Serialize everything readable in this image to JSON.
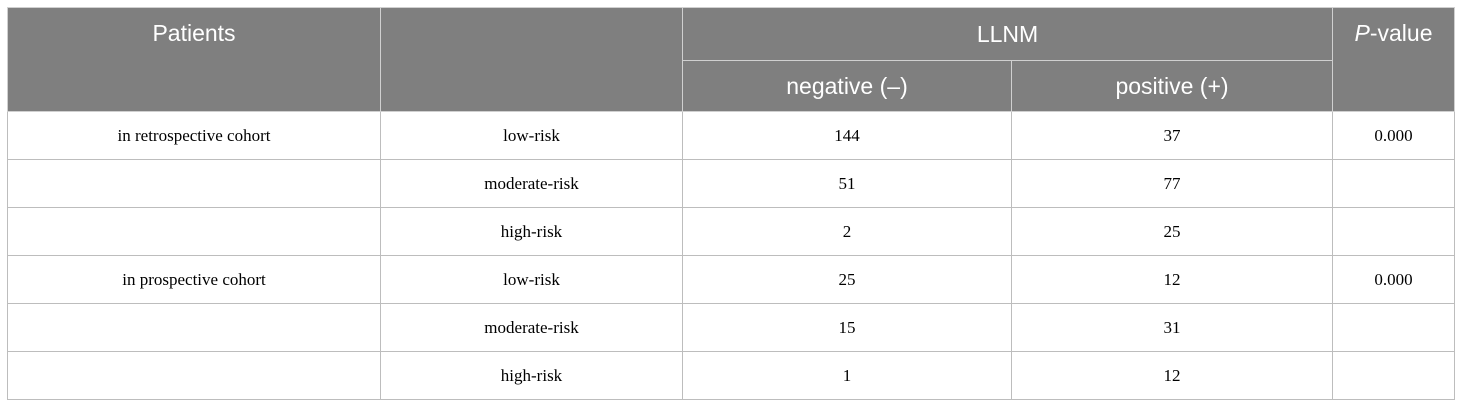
{
  "header": {
    "patients": "Patients",
    "group": "",
    "llnm": "LLNM",
    "p_value_italic": "P",
    "p_value_rest": "-value",
    "negative": "negative (–)",
    "positive": "positive (+)"
  },
  "rows": [
    {
      "cohort": "in retrospective cohort",
      "risk": "low-risk",
      "neg": "144",
      "pos": "37",
      "p": "0.000"
    },
    {
      "cohort": "",
      "risk": "moderate-risk",
      "neg": "51",
      "pos": "77",
      "p": ""
    },
    {
      "cohort": "",
      "risk": "high-risk",
      "neg": "2",
      "pos": "25",
      "p": ""
    },
    {
      "cohort": "in prospective cohort",
      "risk": "low-risk",
      "neg": "25",
      "pos": "12",
      "p": "0.000"
    },
    {
      "cohort": "",
      "risk": "moderate-risk",
      "neg": "15",
      "pos": "31",
      "p": ""
    },
    {
      "cohort": "",
      "risk": "high-risk",
      "neg": "1",
      "pos": "12",
      "p": ""
    }
  ]
}
